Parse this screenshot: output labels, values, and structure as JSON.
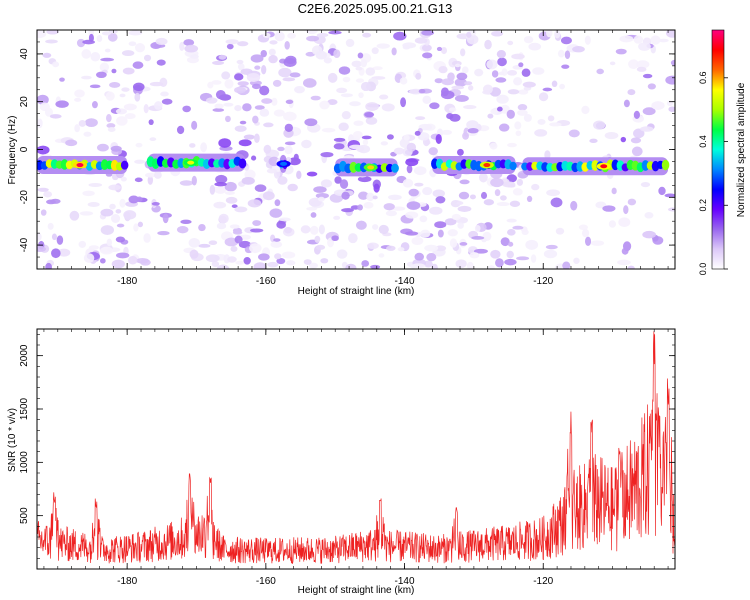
{
  "title": "C2E6.2025.095.00.21.G13",
  "chart_data": [
    {
      "type": "heatmap",
      "title": "",
      "xlabel": "Height of straight line (km)",
      "ylabel": "Frequency (Hz)",
      "xlim": [
        -193,
        -101
      ],
      "ylim": [
        -50,
        50
      ],
      "x_ticks": [
        -180,
        -160,
        -140,
        -120
      ],
      "y_ticks": [
        -40,
        -20,
        0,
        20,
        40
      ],
      "colorbar": {
        "label": "Normalized spectral amplitude",
        "range": [
          0.0,
          0.75
        ],
        "ticks": [
          "0.0",
          "0.2",
          "0.4",
          "0.6"
        ],
        "colormap": [
          "#ffffff",
          "#dcc8f8",
          "#9966ee",
          "#6600ff",
          "#0000ff",
          "#0088ff",
          "#00ffdd",
          "#00ff44",
          "#aaff00",
          "#ffff00",
          "#ff6600",
          "#ff0000",
          "#ff0080"
        ]
      },
      "ridge": {
        "description_values": "dominant signal band near -7 Hz",
        "segments": [
          {
            "x_start": -193,
            "x_end": -180,
            "freq": -6.5,
            "peak": 0.72
          },
          {
            "x_start": -177,
            "x_end": -163,
            "freq": -5.5,
            "peak": 0.55
          },
          {
            "x_start": -158,
            "x_end": -157,
            "freq": -6.0,
            "peak": 0.3
          },
          {
            "x_start": -150,
            "x_end": -141,
            "freq": -7.5,
            "peak": 0.58
          },
          {
            "x_start": -136,
            "x_end": -124,
            "freq": -6.5,
            "peak": 0.66
          },
          {
            "x_start": -123,
            "x_end": -102,
            "freq": -7.0,
            "peak": 0.7
          }
        ]
      }
    },
    {
      "type": "line",
      "title": "",
      "xlabel": "Height of straight line (km)",
      "ylabel": "SNR (10 * v/v)",
      "xlim": [
        -193,
        -101
      ],
      "ylim": [
        0,
        2250
      ],
      "x_ticks": [
        -180,
        -160,
        -140,
        -120
      ],
      "y_ticks": [
        500,
        1000,
        1500,
        2000
      ],
      "series": [
        {
          "color": "#ee2222",
          "envelope_x": [
            -193,
            -188,
            -183,
            -178,
            -173,
            -169,
            -166,
            -160,
            -150,
            -145,
            -140,
            -135,
            -130,
            -125,
            -120,
            -117,
            -115,
            -112,
            -110,
            -108,
            -106,
            -104,
            -102,
            -101
          ],
          "envelope_y": [
            300,
            250,
            200,
            230,
            300,
            380,
            200,
            190,
            200,
            250,
            230,
            210,
            240,
            270,
            320,
            500,
            620,
            700,
            620,
            750,
            900,
            1100,
            700,
            400
          ],
          "spikes": [
            {
              "x": -190.5,
              "y": 720
            },
            {
              "x": -184.5,
              "y": 670
            },
            {
              "x": -171,
              "y": 920
            },
            {
              "x": -168,
              "y": 900
            },
            {
              "x": -143.5,
              "y": 700
            },
            {
              "x": -132.5,
              "y": 600
            },
            {
              "x": -116,
              "y": 1480
            },
            {
              "x": -113,
              "y": 1400
            },
            {
              "x": -109,
              "y": 1150
            },
            {
              "x": -104,
              "y": 2250
            },
            {
              "x": -102,
              "y": 1800
            }
          ]
        }
      ]
    }
  ]
}
